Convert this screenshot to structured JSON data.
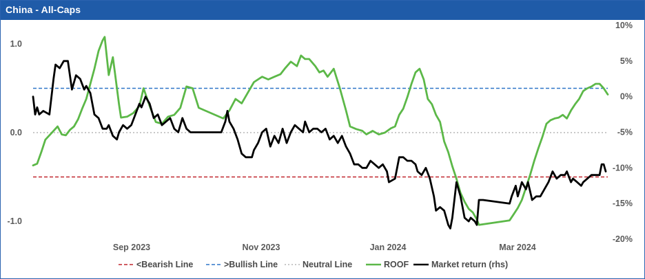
{
  "header": {
    "title": "China - All-Caps"
  },
  "colors": {
    "header_bg": "#1f5ba8",
    "bearish": "#c0262d",
    "bullish": "#2e75c8",
    "neutral": "#b5b5b5",
    "roof": "#5cb848",
    "market": "#000000"
  },
  "chart_data": {
    "type": "line",
    "title": "China - All-Caps",
    "x_ticks": [
      "Sep 2023",
      "Nov 2023",
      "Jan 2024",
      "Mar 2024"
    ],
    "y_left": {
      "ticks": [
        "1.0",
        "0.0",
        "-1.0"
      ],
      "range": [
        -1.25,
        1.18
      ]
    },
    "y_right": {
      "ticks": [
        "10%",
        "5%",
        "0%",
        "-5%",
        "-10%",
        "-15%",
        "-20%"
      ],
      "range": [
        -20,
        10
      ]
    },
    "legend_position": "bottom",
    "grid": false,
    "series": [
      {
        "name": "<Bearish Line",
        "axis": "left",
        "style": "dashed",
        "constant": -0.5
      },
      {
        "name": ">Bullish Line",
        "axis": "left",
        "style": "dashed",
        "constant": 0.5
      },
      {
        "name": "Neutral Line",
        "axis": "left",
        "style": "dotted",
        "constant": 0.0
      },
      {
        "name": "ROOF",
        "axis": "left",
        "style": "solid",
        "points": [
          [
            "2023-07-17",
            -0.37
          ],
          [
            "2023-07-19",
            -0.35
          ],
          [
            "2023-07-21",
            -0.22
          ],
          [
            "2023-07-23",
            -0.08
          ],
          [
            "2023-07-25",
            -0.03
          ],
          [
            "2023-07-27",
            0.02
          ],
          [
            "2023-07-29",
            0.07
          ],
          [
            "2023-07-31",
            -0.02
          ],
          [
            "2023-08-02",
            -0.03
          ],
          [
            "2023-08-04",
            0.03
          ],
          [
            "2023-08-06",
            0.07
          ],
          [
            "2023-08-08",
            0.15
          ],
          [
            "2023-08-10",
            0.27
          ],
          [
            "2023-08-12",
            0.38
          ],
          [
            "2023-08-14",
            0.55
          ],
          [
            "2023-08-16",
            0.72
          ],
          [
            "2023-08-18",
            0.92
          ],
          [
            "2023-08-20",
            1.04
          ],
          [
            "2023-08-21",
            1.08
          ],
          [
            "2023-08-23",
            0.65
          ],
          [
            "2023-08-25",
            0.85
          ],
          [
            "2023-08-26",
            0.68
          ],
          [
            "2023-08-28",
            0.32
          ],
          [
            "2023-08-29",
            0.17
          ],
          [
            "2023-09-01",
            0.18
          ],
          [
            "2023-09-04",
            0.22
          ],
          [
            "2023-09-07",
            0.3
          ],
          [
            "2023-09-09",
            0.5
          ],
          [
            "2023-09-12",
            0.3
          ],
          [
            "2023-09-15",
            0.12
          ],
          [
            "2023-09-18",
            0.1
          ],
          [
            "2023-09-21",
            0.18
          ],
          [
            "2023-09-24",
            0.2
          ],
          [
            "2023-09-27",
            0.28
          ],
          [
            "2023-09-30",
            0.52
          ],
          [
            "2023-10-03",
            0.5
          ],
          [
            "2023-10-06",
            0.28
          ],
          [
            "2023-10-12",
            0.22
          ],
          [
            "2023-10-18",
            0.16
          ],
          [
            "2023-10-21",
            0.25
          ],
          [
            "2023-10-24",
            0.38
          ],
          [
            "2023-10-27",
            0.33
          ],
          [
            "2023-10-30",
            0.45
          ],
          [
            "2023-11-02",
            0.57
          ],
          [
            "2023-11-06",
            0.63
          ],
          [
            "2023-11-09",
            0.6
          ],
          [
            "2023-11-12",
            0.63
          ],
          [
            "2023-11-15",
            0.66
          ],
          [
            "2023-11-17",
            0.72
          ],
          [
            "2023-11-20",
            0.8
          ],
          [
            "2023-11-23",
            0.75
          ],
          [
            "2023-11-25",
            0.87
          ],
          [
            "2023-11-27",
            0.83
          ],
          [
            "2023-11-29",
            0.83
          ],
          [
            "2023-12-02",
            0.75
          ],
          [
            "2023-12-04",
            0.68
          ],
          [
            "2023-12-06",
            0.7
          ],
          [
            "2023-12-08",
            0.63
          ],
          [
            "2023-12-11",
            0.72
          ],
          [
            "2023-12-14",
            0.5
          ],
          [
            "2023-12-17",
            0.25
          ],
          [
            "2023-12-19",
            0.07
          ],
          [
            "2023-12-22",
            0.04
          ],
          [
            "2023-12-25",
            0.02
          ],
          [
            "2023-12-27",
            -0.02
          ],
          [
            "2023-12-30",
            0.02
          ],
          [
            "2024-01-02",
            -0.02
          ],
          [
            "2024-01-05",
            0.0
          ],
          [
            "2024-01-08",
            0.05
          ],
          [
            "2024-01-10",
            0.07
          ],
          [
            "2024-01-12",
            0.2
          ],
          [
            "2024-01-14",
            0.27
          ],
          [
            "2024-01-16",
            0.4
          ],
          [
            "2024-01-18",
            0.55
          ],
          [
            "2024-01-20",
            0.68
          ],
          [
            "2024-01-22",
            0.72
          ],
          [
            "2024-01-24",
            0.6
          ],
          [
            "2024-01-26",
            0.38
          ],
          [
            "2024-01-28",
            0.32
          ],
          [
            "2024-01-30",
            0.2
          ],
          [
            "2024-02-01",
            0.12
          ],
          [
            "2024-02-03",
            -0.1
          ],
          [
            "2024-02-05",
            -0.22
          ],
          [
            "2024-02-07",
            -0.38
          ],
          [
            "2024-02-09",
            -0.52
          ],
          [
            "2024-02-11",
            -0.68
          ],
          [
            "2024-02-13",
            -0.78
          ],
          [
            "2024-02-15",
            -0.86
          ],
          [
            "2024-02-17",
            -0.9
          ],
          [
            "2024-02-19",
            -0.98
          ],
          [
            "2024-02-20",
            -1.04
          ],
          [
            "2024-03-06",
            -0.99
          ],
          [
            "2024-03-08",
            -0.92
          ],
          [
            "2024-03-10",
            -0.85
          ],
          [
            "2024-03-12",
            -0.76
          ],
          [
            "2024-03-14",
            -0.62
          ],
          [
            "2024-03-16",
            -0.48
          ],
          [
            "2024-03-18",
            -0.32
          ],
          [
            "2024-03-20",
            -0.18
          ],
          [
            "2024-03-22",
            -0.05
          ],
          [
            "2024-03-24",
            0.1
          ],
          [
            "2024-03-26",
            0.14
          ],
          [
            "2024-03-28",
            0.16
          ],
          [
            "2024-03-30",
            0.17
          ],
          [
            "2024-04-01",
            0.2
          ],
          [
            "2024-04-03",
            0.16
          ],
          [
            "2024-04-05",
            0.25
          ],
          [
            "2024-04-07",
            0.32
          ],
          [
            "2024-04-09",
            0.38
          ],
          [
            "2024-04-11",
            0.47
          ],
          [
            "2024-04-13",
            0.5
          ],
          [
            "2024-04-15",
            0.52
          ],
          [
            "2024-04-17",
            0.55
          ],
          [
            "2024-04-19",
            0.55
          ],
          [
            "2024-04-21",
            0.5
          ],
          [
            "2024-04-23",
            0.43
          ]
        ]
      },
      {
        "name": "Market return (rhs)",
        "axis": "right",
        "style": "solid",
        "points": [
          [
            "2023-07-17",
            0.0
          ],
          [
            "2023-07-18",
            -2.5
          ],
          [
            "2023-07-19",
            -1.5
          ],
          [
            "2023-07-20",
            -2.5
          ],
          [
            "2023-07-22",
            -2.0
          ],
          [
            "2023-07-25",
            -2.5
          ],
          [
            "2023-07-27",
            2.5
          ],
          [
            "2023-07-28",
            4.5
          ],
          [
            "2023-07-30",
            4.0
          ],
          [
            "2023-08-01",
            5.0
          ],
          [
            "2023-08-03",
            5.0
          ],
          [
            "2023-08-05",
            1.0
          ],
          [
            "2023-08-07",
            3.0
          ],
          [
            "2023-08-09",
            2.5
          ],
          [
            "2023-08-11",
            1.0
          ],
          [
            "2023-08-12",
            1.5
          ],
          [
            "2023-08-14",
            0.5
          ],
          [
            "2023-08-16",
            -2.5
          ],
          [
            "2023-08-18",
            -3.0
          ],
          [
            "2023-08-20",
            -4.5
          ],
          [
            "2023-08-22",
            -4.5
          ],
          [
            "2023-08-23",
            -4.0
          ],
          [
            "2023-08-25",
            -5.5
          ],
          [
            "2023-08-27",
            -6.0
          ],
          [
            "2023-08-28",
            -5.0
          ],
          [
            "2023-08-30",
            -4.0
          ],
          [
            "2023-09-01",
            -4.5
          ],
          [
            "2023-09-03",
            -4.0
          ],
          [
            "2023-09-05",
            -2.5
          ],
          [
            "2023-09-07",
            -1.0
          ],
          [
            "2023-09-08",
            -1.5
          ],
          [
            "2023-09-10",
            0.0
          ],
          [
            "2023-09-12",
            -1.0
          ],
          [
            "2023-09-14",
            -3.0
          ],
          [
            "2023-09-16",
            -2.5
          ],
          [
            "2023-09-18",
            -4.0
          ],
          [
            "2023-09-20",
            -3.5
          ],
          [
            "2023-09-22",
            -3.0
          ],
          [
            "2023-09-24",
            -4.5
          ],
          [
            "2023-09-26",
            -5.0
          ],
          [
            "2023-09-28",
            -3.0
          ],
          [
            "2023-09-30",
            -4.5
          ],
          [
            "2023-10-02",
            -5.0
          ],
          [
            "2023-10-17",
            -5.0
          ],
          [
            "2023-10-19",
            -3.5
          ],
          [
            "2023-10-20",
            -2.0
          ],
          [
            "2023-10-21",
            -3.5
          ],
          [
            "2023-10-23",
            -4.5
          ],
          [
            "2023-10-25",
            -6.0
          ],
          [
            "2023-10-27",
            -8.0
          ],
          [
            "2023-10-29",
            -8.5
          ],
          [
            "2023-11-01",
            -8.5
          ],
          [
            "2023-11-02",
            -7.5
          ],
          [
            "2023-11-04",
            -6.5
          ],
          [
            "2023-11-06",
            -5.0
          ],
          [
            "2023-11-08",
            -4.5
          ],
          [
            "2023-11-10",
            -7.0
          ],
          [
            "2023-11-12",
            -5.5
          ],
          [
            "2023-11-14",
            -6.5
          ],
          [
            "2023-11-16",
            -4.5
          ],
          [
            "2023-11-18",
            -6.5
          ],
          [
            "2023-11-20",
            -5.0
          ],
          [
            "2023-11-22",
            -4.0
          ],
          [
            "2023-11-24",
            -4.5
          ],
          [
            "2023-11-26",
            -5.0
          ],
          [
            "2023-11-27",
            -3.5
          ],
          [
            "2023-11-29",
            -5.0
          ],
          [
            "2023-12-01",
            -4.5
          ],
          [
            "2023-12-03",
            -4.5
          ],
          [
            "2023-12-05",
            -5.0
          ],
          [
            "2023-12-07",
            -4.5
          ],
          [
            "2023-12-09",
            -6.0
          ],
          [
            "2023-12-11",
            -5.5
          ],
          [
            "2023-12-13",
            -6.5
          ],
          [
            "2023-12-15",
            -5.5
          ],
          [
            "2023-12-17",
            -7.0
          ],
          [
            "2023-12-19",
            -8.0
          ],
          [
            "2023-12-21",
            -9.5
          ],
          [
            "2023-12-23",
            -9.5
          ],
          [
            "2023-12-25",
            -10.0
          ],
          [
            "2023-12-27",
            -10.0
          ],
          [
            "2023-12-29",
            -9.0
          ],
          [
            "2023-12-31",
            -9.5
          ],
          [
            "2024-01-02",
            -10.0
          ],
          [
            "2024-01-04",
            -9.5
          ],
          [
            "2024-01-06",
            -10.5
          ],
          [
            "2024-01-07",
            -12.0
          ],
          [
            "2024-01-10",
            -11.5
          ],
          [
            "2024-01-12",
            -8.5
          ],
          [
            "2024-01-14",
            -8.5
          ],
          [
            "2024-01-16",
            -9.0
          ],
          [
            "2024-01-18",
            -9.0
          ],
          [
            "2024-01-20",
            -9.5
          ],
          [
            "2024-01-21",
            -10.5
          ],
          [
            "2024-01-23",
            -11.0
          ],
          [
            "2024-01-25",
            -10.0
          ],
          [
            "2024-01-27",
            -11.5
          ],
          [
            "2024-01-29",
            -14.0
          ],
          [
            "2024-01-30",
            -16.0
          ],
          [
            "2024-02-01",
            -15.5
          ],
          [
            "2024-02-03",
            -16.0
          ],
          [
            "2024-02-05",
            -18.0
          ],
          [
            "2024-02-06",
            -18.5
          ],
          [
            "2024-02-07",
            -17.0
          ],
          [
            "2024-02-09",
            -12.0
          ],
          [
            "2024-02-11",
            -14.0
          ],
          [
            "2024-02-13",
            -17.0
          ],
          [
            "2024-02-15",
            -17.5
          ],
          [
            "2024-02-16",
            -17.0
          ],
          [
            "2024-02-18",
            -17.5
          ],
          [
            "2024-02-19",
            -18.0
          ],
          [
            "2024-02-20",
            -14.5
          ],
          [
            "2024-02-22",
            -14.5
          ],
          [
            "2024-03-06",
            -15.0
          ],
          [
            "2024-03-07",
            -14.0
          ],
          [
            "2024-03-09",
            -12.5
          ],
          [
            "2024-03-10",
            -14.0
          ],
          [
            "2024-03-12",
            -12.0
          ],
          [
            "2024-03-14",
            -13.0
          ],
          [
            "2024-03-15",
            -12.0
          ],
          [
            "2024-03-17",
            -14.5
          ],
          [
            "2024-03-19",
            -14.0
          ],
          [
            "2024-03-21",
            -14.0
          ],
          [
            "2024-03-23",
            -13.0
          ],
          [
            "2024-03-25",
            -12.0
          ],
          [
            "2024-03-27",
            -10.5
          ],
          [
            "2024-03-29",
            -11.5
          ],
          [
            "2024-03-31",
            -11.0
          ],
          [
            "2024-04-02",
            -11.0
          ],
          [
            "2024-04-03",
            -10.5
          ],
          [
            "2024-04-05",
            -12.0
          ],
          [
            "2024-04-06",
            -11.5
          ],
          [
            "2024-04-08",
            -12.0
          ],
          [
            "2024-04-10",
            -12.5
          ],
          [
            "2024-04-11",
            -12.0
          ],
          [
            "2024-04-13",
            -11.5
          ],
          [
            "2024-04-15",
            -11.0
          ],
          [
            "2024-04-17",
            -11.0
          ],
          [
            "2024-04-19",
            -11.0
          ],
          [
            "2024-04-20",
            -9.5
          ],
          [
            "2024-04-21",
            -9.5
          ],
          [
            "2024-04-22",
            -10.5
          ]
        ]
      }
    ]
  }
}
